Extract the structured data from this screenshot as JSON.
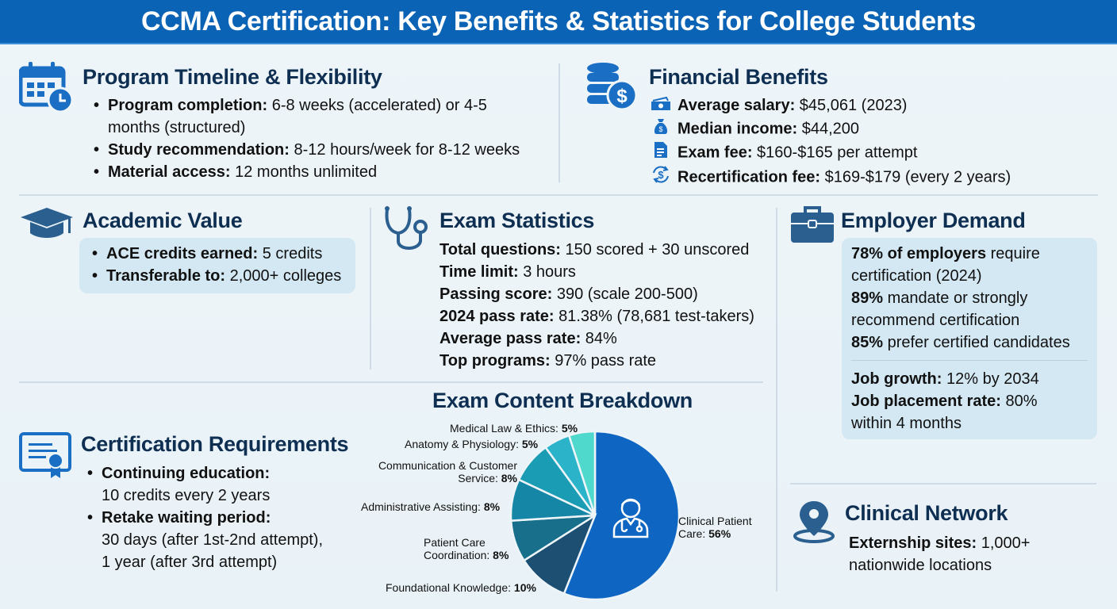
{
  "title": "CCMA Certification: Key Benefits & Statistics for College Students",
  "colors": {
    "banner": "#0b63b5",
    "heading": "#0f2f52",
    "icon": "#1a6fc4",
    "icon_dark": "#2a5f8f",
    "panel": "#d3e8f3"
  },
  "program_timeline": {
    "heading": "Program Timeline & Flexibility",
    "icon": "calendar-clock-icon",
    "items": [
      {
        "label": "Program completion:",
        "value": " 6-8 weeks (accelerated) or 4-5",
        "value2": "months (structured)"
      },
      {
        "label": "Study recommendation:",
        "value": " 8-12 hours/week for 8-12 weeks"
      },
      {
        "label": "Material access:",
        "value": " 12 months unlimited"
      }
    ]
  },
  "financial": {
    "heading": "Financial Benefits",
    "icon": "coins-dollar-icon",
    "items": [
      {
        "icon": "cash-icon",
        "label": "Average salary:",
        "value": " $45,061 (2023)"
      },
      {
        "icon": "money-bag-icon",
        "label": "Median income:",
        "value": " $44,200"
      },
      {
        "icon": "document-icon",
        "label": "Exam fee:",
        "value": " $160-$165 per attempt"
      },
      {
        "icon": "dollar-cycle-icon",
        "label": "Recertification fee:",
        "value": " $169-$179 (every 2 years)"
      }
    ]
  },
  "academic": {
    "heading": "Academic Value",
    "icon": "graduation-cap-icon",
    "items": [
      {
        "label": "ACE credits earned:",
        "value": " 5 credits"
      },
      {
        "label": "Transferable to:",
        "value": " 2,000+ colleges"
      }
    ]
  },
  "exam_stats": {
    "heading": "Exam Statistics",
    "icon": "stethoscope-icon",
    "items": [
      {
        "label": "Total questions:",
        "value": " 150 scored + 30 unscored"
      },
      {
        "label": "Time limit:",
        "value": " 3 hours"
      },
      {
        "label": "Passing score:",
        "value": " 390 (scale 200-500)"
      },
      {
        "label": "2024 pass rate:",
        "value": " 81.38% (78,681 test-takers)"
      },
      {
        "label": "Average pass rate:",
        "value": " 84%"
      },
      {
        "label": "Top programs:",
        "value": " 97% pass rate"
      }
    ]
  },
  "employer": {
    "heading": "Employer Demand",
    "icon": "briefcase-icon",
    "lines": [
      {
        "bold": "78% of employers",
        "text": " require"
      },
      {
        "bold": "",
        "text": "certification (2024)"
      },
      {
        "bold": "89%",
        "text": " mandate or strongly"
      },
      {
        "bold": "",
        "text": "recommend certification"
      },
      {
        "bold": "85%",
        "text": " prefer certified candidates"
      }
    ],
    "lines2": [
      {
        "bold": "Job growth:",
        "text": " 12% by 2034"
      },
      {
        "bold": "Job placement rate:",
        "text": " 80%"
      },
      {
        "bold": "",
        "text": "within 4 months"
      }
    ]
  },
  "cert_requirements": {
    "heading": "Certification Requirements",
    "icon": "certificate-icon",
    "items": [
      {
        "label": "Continuing education:",
        "value": "10 credits every 2 years"
      },
      {
        "label": "Retake waiting period:",
        "value": "30 days (after 1st-2nd attempt),",
        "value2": "1 year (after 3rd attempt)"
      }
    ]
  },
  "clinical_network": {
    "heading": "Clinical Network",
    "icon": "location-pin-icon",
    "label": "Externship sites:",
    "value": " 1,000+",
    "value2": "nationwide locations"
  },
  "chart_data": {
    "type": "pie",
    "title": "Exam Content Breakdown",
    "categories": [
      "Clinical Patient Care",
      "Foundational Knowledge",
      "Patient Care Coordination",
      "Administrative Assisting",
      "Communication & Customer Service",
      "Anatomy & Physiology",
      "Medical Law & Ethics"
    ],
    "values": [
      56,
      10,
      8,
      8,
      8,
      5,
      5
    ],
    "unit": "%",
    "colors": [
      "#0e66c2",
      "#1d4f73",
      "#176f8c",
      "#1686a6",
      "#1a9cb4",
      "#2bb3c9",
      "#4fd8cc"
    ],
    "labels": [
      {
        "name": "Clinical Patient",
        "name2": "Care:",
        "pct": "56%"
      },
      {
        "name": "Foundational Knowledge:",
        "pct": "10%"
      },
      {
        "name": "Patient Care",
        "name2": "Coordination:",
        "pct": "8%"
      },
      {
        "name": "Administrative Assisting:",
        "pct": "8%"
      },
      {
        "name": "Communication & Customer",
        "name2": "Service:",
        "pct": "8%"
      },
      {
        "name": "Anatomy & Physiology:",
        "pct": "5%"
      },
      {
        "name": "Medical Law & Ethics:",
        "pct": "5%"
      }
    ],
    "center_icon": "doctor-icon",
    "legend_position": "around slices"
  }
}
